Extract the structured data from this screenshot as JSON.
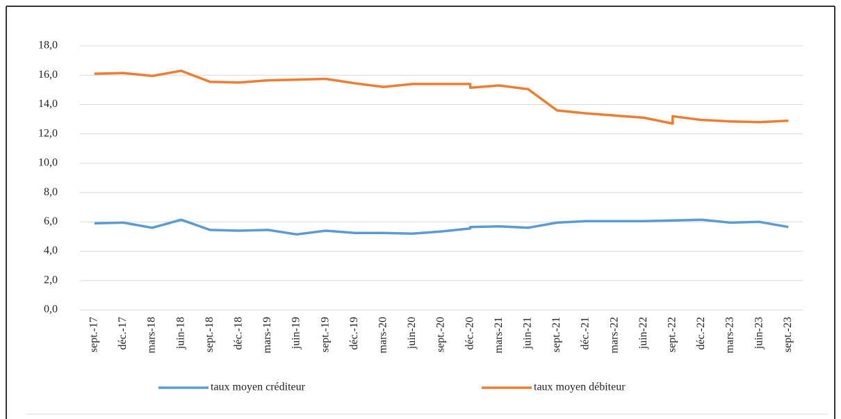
{
  "chart_data": {
    "type": "line",
    "categories": [
      "sept.-17",
      "déc.-17",
      "mars-18",
      "juin-18",
      "sept.-18",
      "déc.-18",
      "mars-19",
      "juin-19",
      "sept.-19",
      "déc.-19",
      "mars-20",
      "juin-20",
      "sept.-20",
      "déc.-20",
      null,
      "mars-21",
      "juin-21",
      "sept.-21",
      "déc.-21",
      "mars-22",
      "juin-22",
      "sept.-22",
      null,
      "déc.-22",
      "mars-23",
      "juin-23",
      "sept.-23"
    ],
    "series": [
      {
        "name": "taux moyen créditeur",
        "color": "#5b9bd5",
        "values": [
          5.9,
          5.95,
          5.6,
          6.15,
          5.45,
          5.4,
          5.45,
          5.15,
          5.4,
          5.25,
          5.25,
          5.2,
          5.35,
          5.55,
          5.65,
          5.7,
          5.6,
          5.95,
          6.05,
          6.05,
          6.05,
          6.1,
          6.1,
          6.15,
          5.95,
          6.0,
          5.65
        ]
      },
      {
        "name": "taux moyen débiteur",
        "color": "#ed7d31",
        "values": [
          16.1,
          16.15,
          15.95,
          16.3,
          15.55,
          15.5,
          15.65,
          15.7,
          15.75,
          15.45,
          15.2,
          15.4,
          15.4,
          15.4,
          15.15,
          15.3,
          15.05,
          13.6,
          13.4,
          13.25,
          13.1,
          12.7,
          13.2,
          12.95,
          12.85,
          12.8,
          12.9
        ]
      }
    ],
    "ylim": [
      0,
      18
    ],
    "yticks": [
      {
        "value": 0,
        "label": "0,0"
      },
      {
        "value": 2,
        "label": "2,0"
      },
      {
        "value": 4,
        "label": "4,0"
      },
      {
        "value": 6,
        "label": "6,0"
      },
      {
        "value": 8,
        "label": "8,0"
      },
      {
        "value": 10,
        "label": "10,0"
      },
      {
        "value": 12,
        "label": "12,0"
      },
      {
        "value": 14,
        "label": "14,0"
      },
      {
        "value": 16,
        "label": "16,0"
      },
      {
        "value": 18,
        "label": "18,0"
      }
    ],
    "grid": true,
    "legend": "bottom"
  }
}
